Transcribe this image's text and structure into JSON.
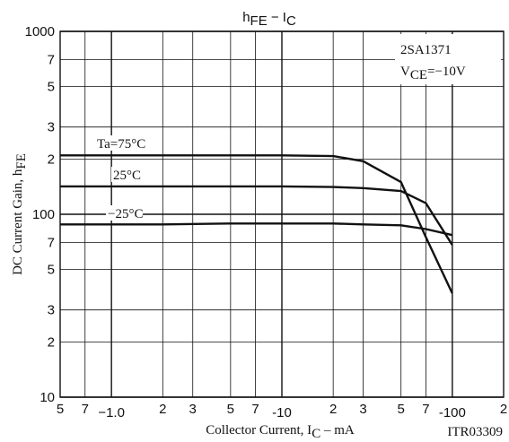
{
  "chart_data": {
    "type": "line",
    "title": [
      {
        "text": "h"
      },
      {
        "text": "FE",
        "sub": true
      },
      {
        "text": " − I"
      },
      {
        "text": "C",
        "sub": true
      }
    ],
    "y_label": [
      {
        "text": "DC Current Gain, h"
      },
      {
        "text": "FE",
        "sub": true
      }
    ],
    "x_label": [
      {
        "text": "Collector Current, I"
      },
      {
        "text": "C",
        "sub": true
      },
      {
        "text": " – mA"
      }
    ],
    "annotations": [
      [
        {
          "text": "2SA1371"
        }
      ],
      [
        {
          "text": "V"
        },
        {
          "text": "CE",
          "sub": true
        },
        {
          "text": "=−10V"
        }
      ]
    ],
    "figure_id": "ITR03309",
    "log_x": true,
    "log_y": true,
    "grid": true,
    "x": [
      -0.5,
      -1,
      -2,
      -5,
      -10,
      -20,
      -30,
      -50,
      -70,
      -100
    ],
    "series": [
      {
        "name": "Ta=75°C",
        "color": "#111111",
        "values": [
          210,
          210,
          210,
          210,
          210,
          208,
          195,
          150,
          75,
          37
        ]
      },
      {
        "name": "25°C",
        "color": "#111111",
        "values": [
          142,
          142,
          142,
          142,
          142,
          141,
          139,
          134,
          115,
          68
        ]
      },
      {
        "name": "−25°C",
        "color": "#111111",
        "values": [
          88,
          88,
          88,
          89,
          89,
          89,
          88,
          87,
          83,
          77
        ]
      }
    ],
    "xlim": [
      -0.5,
      -200
    ],
    "xticks": [
      {
        "value": -0.5,
        "label": "5"
      },
      {
        "value": -0.7,
        "label": "7"
      },
      {
        "value": -1,
        "label": "−1.0"
      },
      {
        "value": -2,
        "label": "2"
      },
      {
        "value": -3,
        "label": "3"
      },
      {
        "value": -5,
        "label": "5"
      },
      {
        "value": -7,
        "label": "7"
      },
      -10,
      {
        "value": -20,
        "label": "2"
      },
      {
        "value": -30,
        "label": "3"
      },
      {
        "value": -50,
        "label": "5"
      },
      {
        "value": -70,
        "label": "7"
      },
      -100,
      {
        "value": -200,
        "label": "2"
      }
    ],
    "ylim": [
      10,
      1000
    ],
    "yticks": [
      10,
      {
        "value": 20,
        "label": "2"
      },
      {
        "value": 30,
        "label": "3"
      },
      {
        "value": 50,
        "label": "5"
      },
      {
        "value": 70,
        "label": "7"
      },
      100,
      {
        "value": 200,
        "label": "2"
      },
      {
        "value": 300,
        "label": "3"
      },
      {
        "value": 500,
        "label": "5"
      },
      {
        "value": 700,
        "label": "7"
      },
      1000
    ]
  }
}
